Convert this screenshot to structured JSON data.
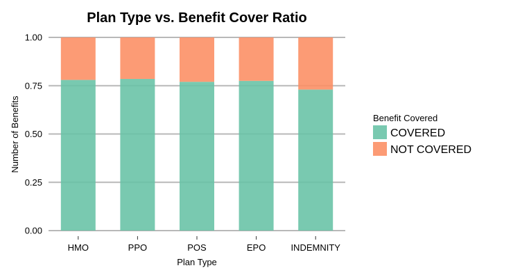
{
  "chart_data": {
    "type": "bar",
    "stacked": true,
    "title": "Plan Type vs. Benefit Cover Ratio",
    "xlabel": "Plan Type",
    "ylabel": "Number of Benefits",
    "categories": [
      "HMO",
      "PPO",
      "POS",
      "EPO",
      "INDEMNITY"
    ],
    "series": [
      {
        "name": "COVERED",
        "color": "#66c2a5",
        "values": [
          0.78,
          0.785,
          0.77,
          0.775,
          0.73
        ]
      },
      {
        "name": "NOT COVERED",
        "color": "#fc8d62",
        "values": [
          0.22,
          0.215,
          0.23,
          0.225,
          0.27
        ]
      }
    ],
    "ylim": [
      0,
      1
    ],
    "yticks": [
      "0.00",
      "0.25",
      "0.50",
      "0.75",
      "1.00"
    ],
    "grid": true,
    "legend": {
      "title": "Benefit Covered",
      "placement": "right"
    }
  }
}
